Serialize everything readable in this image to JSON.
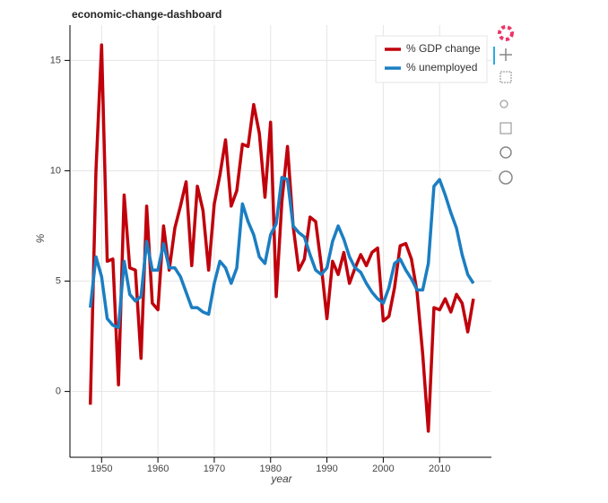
{
  "chart_data": {
    "type": "line",
    "title": "economic-change-dashboard",
    "x_label": "year",
    "y_label": "%",
    "x": [
      1948,
      1949,
      1950,
      1951,
      1952,
      1953,
      1954,
      1955,
      1956,
      1957,
      1958,
      1959,
      1960,
      1961,
      1962,
      1963,
      1964,
      1965,
      1966,
      1967,
      1968,
      1969,
      1970,
      1971,
      1972,
      1973,
      1974,
      1975,
      1976,
      1977,
      1978,
      1979,
      1980,
      1981,
      1982,
      1983,
      1984,
      1985,
      1986,
      1987,
      1988,
      1989,
      1990,
      1991,
      1992,
      1993,
      1994,
      1995,
      1996,
      1997,
      1998,
      1999,
      2000,
      2001,
      2002,
      2003,
      2004,
      2005,
      2006,
      2007,
      2008,
      2009,
      2010,
      2011,
      2012,
      2013,
      2014,
      2015,
      2016
    ],
    "series": [
      {
        "name": "% GDP change",
        "color": "#c0000b",
        "values": [
          -0.6,
          10.0,
          15.7,
          5.9,
          6.0,
          0.3,
          8.9,
          5.6,
          5.5,
          1.5,
          8.4,
          4.0,
          3.7,
          7.5,
          5.5,
          7.4,
          8.4,
          9.5,
          5.7,
          9.3,
          8.2,
          5.5,
          8.5,
          9.8,
          11.4,
          8.4,
          9.1,
          11.2,
          11.1,
          13.0,
          11.7,
          8.8,
          12.2,
          4.3,
          8.6,
          11.1,
          7.5,
          5.5,
          6.0,
          7.9,
          7.7,
          5.7,
          3.3,
          5.9,
          5.3,
          6.3,
          4.9,
          5.6,
          6.2,
          5.7,
          6.3,
          6.5,
          3.2,
          3.4,
          4.7,
          6.6,
          6.7,
          6.0,
          4.5,
          1.7,
          -1.8,
          3.8,
          3.7,
          4.2,
          3.6,
          4.4,
          4.0,
          2.7,
          4.2
        ]
      },
      {
        "name": "% unemployed",
        "color": "#1b7ec2",
        "values": [
          3.8,
          6.1,
          5.2,
          3.3,
          3.0,
          2.9,
          5.9,
          4.4,
          4.1,
          4.3,
          6.8,
          5.5,
          5.5,
          6.7,
          5.6,
          5.6,
          5.2,
          4.5,
          3.8,
          3.8,
          3.6,
          3.5,
          4.9,
          5.9,
          5.6,
          4.9,
          5.6,
          8.5,
          7.7,
          7.1,
          6.1,
          5.8,
          7.1,
          7.6,
          9.7,
          9.6,
          7.5,
          7.2,
          7.0,
          6.2,
          5.5,
          5.3,
          5.6,
          6.8,
          7.5,
          6.9,
          6.1,
          5.6,
          5.4,
          4.9,
          4.5,
          4.2,
          4.0,
          4.7,
          5.8,
          6.0,
          5.5,
          5.1,
          4.6,
          4.6,
          5.8,
          9.3,
          9.6,
          8.9,
          8.1,
          7.4,
          6.2,
          5.3,
          4.9
        ]
      }
    ],
    "xlim": [
      1944.7,
      2019.2
    ],
    "ylim": [
      -2.9,
      16.6
    ],
    "xticks": [
      1950,
      1960,
      1970,
      1980,
      1990,
      2000,
      2010
    ],
    "yticks": [
      0,
      5,
      10,
      15
    ],
    "grid": true,
    "legend": "top-right"
  }
}
